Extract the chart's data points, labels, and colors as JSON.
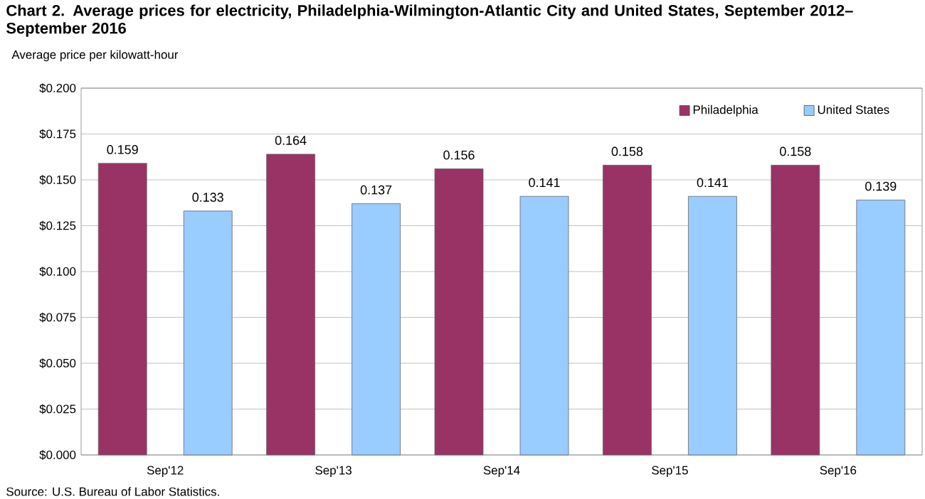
{
  "chart_data": {
    "type": "bar",
    "title": "Chart 2. Average prices for electricity, Philadelphia-Wilmington-Atlantic  City and United States, September 2012–September 2016",
    "ylabel": "Average price per kilowatt-hour",
    "categories": [
      "Sep'12",
      "Sep'13",
      "Sep'14",
      "Sep'15",
      "Sep'16"
    ],
    "series": [
      {
        "name": "Philadelphia",
        "color": "#993366",
        "values": [
          0.159,
          0.164,
          0.156,
          0.158,
          0.158
        ]
      },
      {
        "name": "United States",
        "color": "#99ccff",
        "values": [
          0.133,
          0.137,
          0.141,
          0.141,
          0.139
        ]
      }
    ],
    "ylim": [
      0,
      0.2
    ],
    "yticks": [
      {
        "value": 0,
        "label": "$0.000"
      },
      {
        "value": 0.025,
        "label": "$0.025"
      },
      {
        "value": 0.05,
        "label": "$0.050"
      },
      {
        "value": 0.075,
        "label": "$0.075"
      },
      {
        "value": 0.1,
        "label": "$0.100"
      },
      {
        "value": 0.125,
        "label": "$0.125"
      },
      {
        "value": 0.15,
        "label": "$0.150"
      },
      {
        "value": 0.175,
        "label": "$0.175"
      },
      {
        "value": 0.2,
        "label": "$0.200"
      }
    ],
    "grid": "y",
    "legend": "top right",
    "data_labels": true,
    "annotations": [
      "Source: U.S. Bureau of Labor Statistics."
    ]
  }
}
